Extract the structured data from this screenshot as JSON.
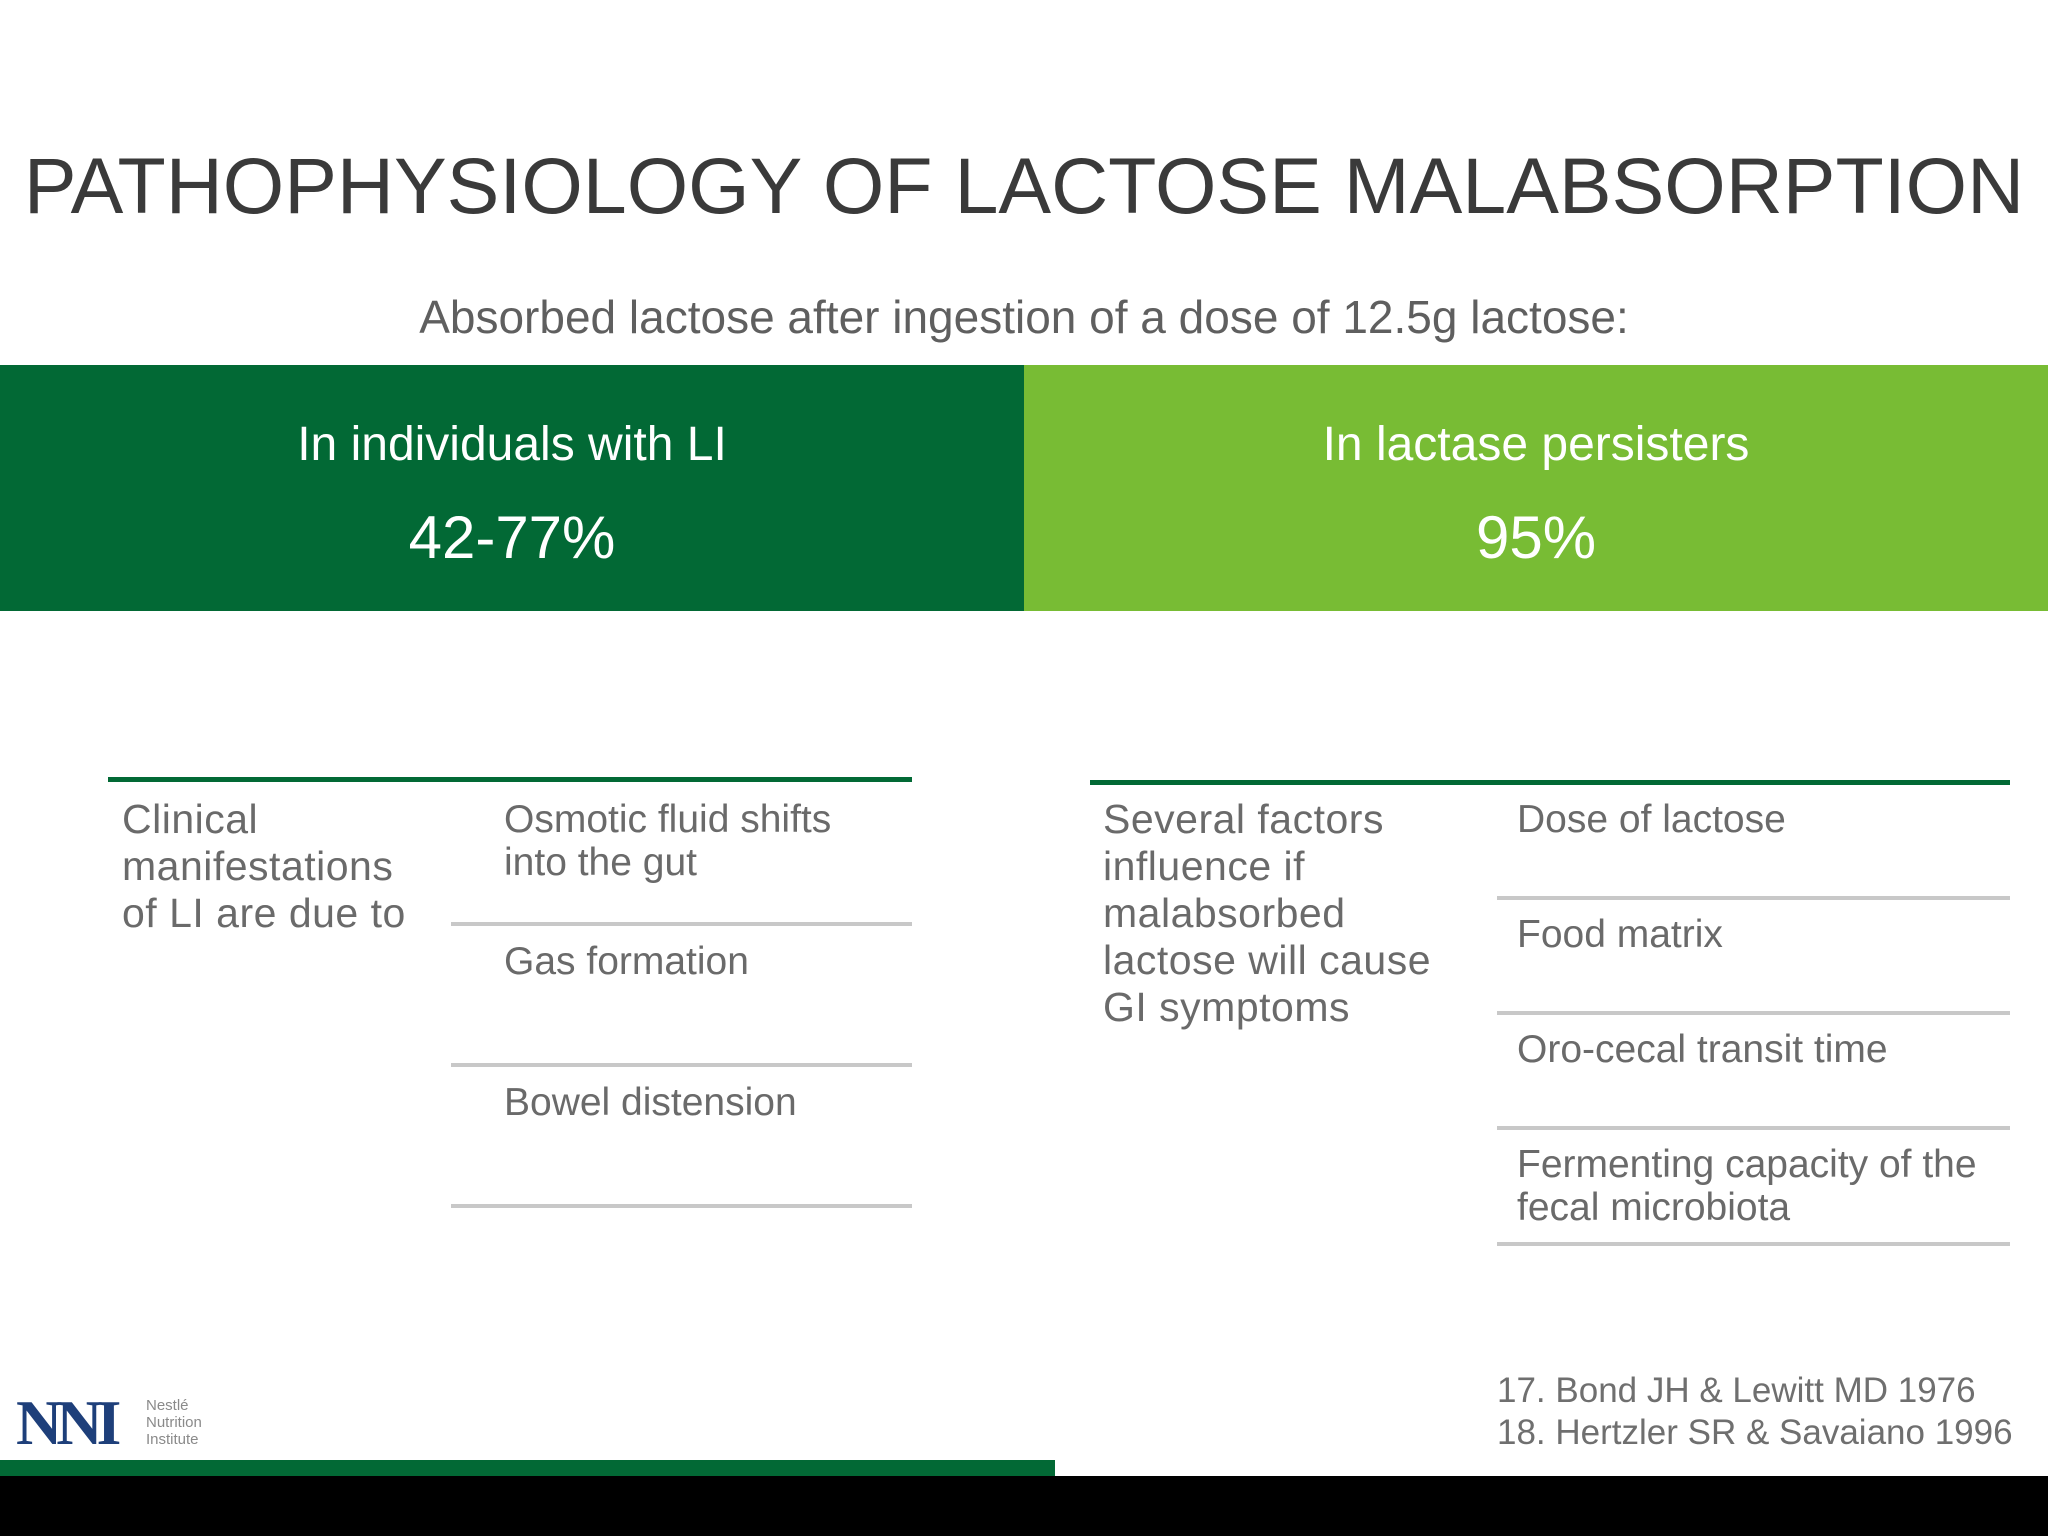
{
  "slide": {
    "title": "PATHOPHYSIOLOGY OF LACTOSE MALABSORPTION",
    "subtitle": "Absorbed lactose after ingestion of a dose of 12.5g lactose:"
  },
  "bands": {
    "left": {
      "label": "In individuals with LI",
      "value": "42-77%",
      "color": "#026935"
    },
    "right": {
      "label": "In lactase persisters",
      "value": "95%",
      "color": "#78bc34"
    }
  },
  "left_table": {
    "lead": [
      "Clinical",
      "manifestations",
      "of LI are due to"
    ],
    "items": [
      [
        "Osmotic fluid shifts",
        "into the gut"
      ],
      [
        "Gas formation"
      ],
      [
        "Bowel distension"
      ]
    ]
  },
  "right_table": {
    "lead": [
      "Several factors",
      "influence if",
      "malabsorbed",
      "lactose will cause",
      "GI symptoms"
    ],
    "items": [
      [
        "Dose of lactose"
      ],
      [
        "Food matrix"
      ],
      [
        "Oro-cecal transit time"
      ],
      [
        "Fermenting capacity of the",
        "fecal microbiota"
      ]
    ]
  },
  "references": [
    "17. Bond JH & Lewitt MD 1976",
    "18. Hertzler SR & Savaiano 1996"
  ],
  "logo": {
    "mark": "NNI",
    "text": [
      "Nestlé",
      "Nutrition",
      "Institute"
    ]
  }
}
